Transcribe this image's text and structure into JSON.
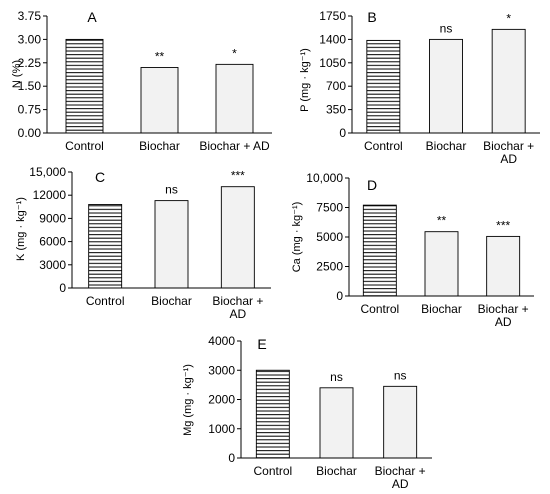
{
  "chart_data": [
    {
      "type": "bar",
      "panel_letter": "A",
      "ylabel": "N (%)",
      "categories": [
        "Control",
        "Biochar",
        "Biochar + AD"
      ],
      "values": [
        3.0,
        2.1,
        2.2
      ],
      "annotations": [
        "",
        "**",
        "*"
      ],
      "ylim": [
        0,
        3.75
      ],
      "yticks": [
        "0.00",
        "0.75",
        "1.50",
        "2.25",
        "3.00",
        "3.75"
      ],
      "grid": false,
      "legend": "none"
    },
    {
      "type": "bar",
      "panel_letter": "B",
      "ylabel": "P (mg · kg⁻¹)",
      "categories": [
        "Control",
        "Biochar",
        "Biochar + AD"
      ],
      "values": [
        1385,
        1400,
        1550
      ],
      "annotations": [
        "",
        "ns",
        "*"
      ],
      "ylim": [
        0,
        1750
      ],
      "yticks": [
        "0",
        "350",
        "700",
        "1050",
        "1400",
        "1750"
      ],
      "grid": false,
      "legend": "none"
    },
    {
      "type": "bar",
      "panel_letter": "C",
      "ylabel": "K (mg · kg⁻¹)",
      "categories": [
        "Control",
        "Biochar",
        "Biochar + AD"
      ],
      "values": [
        10800,
        11300,
        13100
      ],
      "annotations": [
        "",
        "ns",
        "***"
      ],
      "ylim": [
        0,
        15000
      ],
      "yticks": [
        "0",
        "3000",
        "6000",
        "9000",
        "12000",
        "15,000"
      ],
      "grid": false,
      "legend": "none"
    },
    {
      "type": "bar",
      "panel_letter": "D",
      "ylabel": "Ca (mg · kg⁻¹)",
      "categories": [
        "Control",
        "Biochar",
        "Biochar + AD"
      ],
      "values": [
        7700,
        5450,
        5050
      ],
      "annotations": [
        "",
        "**",
        "***"
      ],
      "ylim": [
        0,
        10000
      ],
      "yticks": [
        "0",
        "2500",
        "5000",
        "7500",
        "10,000"
      ],
      "grid": false,
      "legend": "none"
    },
    {
      "type": "bar",
      "panel_letter": "E",
      "ylabel": "Mg (mg · kg⁻¹)",
      "categories": [
        "Control",
        "Biochar",
        "Biochar + AD"
      ],
      "values": [
        3000,
        2400,
        2450
      ],
      "annotations": [
        "",
        "ns",
        "ns"
      ],
      "ylim": [
        0,
        4000
      ],
      "yticks": [
        "0",
        "1000",
        "2000",
        "3000",
        "4000"
      ],
      "grid": false,
      "legend": "none"
    }
  ],
  "colors": {
    "axis": "#000000",
    "hatched_bar_fill": "#ffffff",
    "hatch_lines": "#000000",
    "plain_bar_fill": "#f2f2f2"
  }
}
